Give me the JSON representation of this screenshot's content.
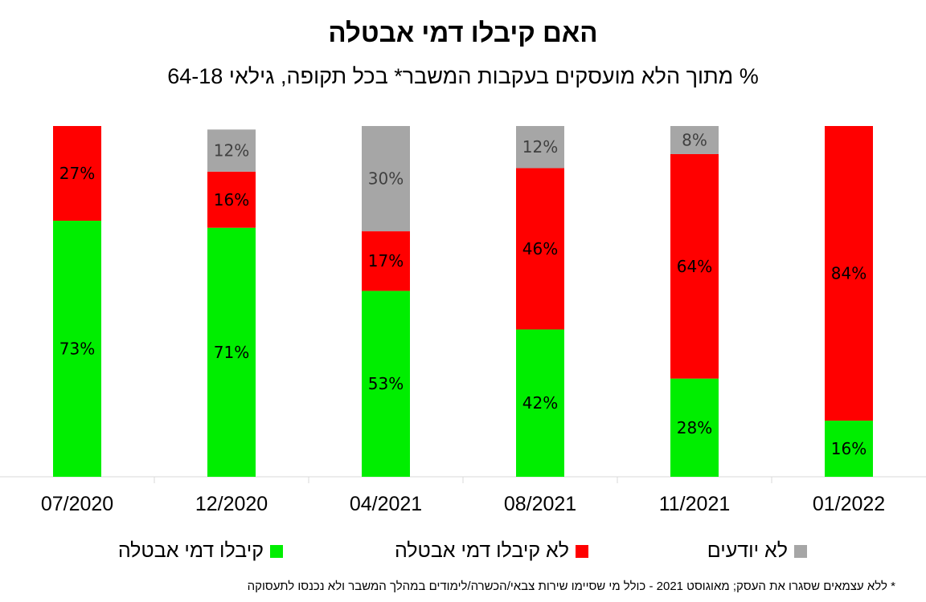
{
  "chart_data": {
    "type": "bar",
    "stacked": true,
    "title": "האם קיבלו דמי אבטלה",
    "subtitle": "% מתוך הלא מועסקים בעקבות המשבר* בכל תקופה, גילאי 64-18",
    "categories": [
      "07/2020",
      "12/2020",
      "04/2021",
      "08/2021",
      "11/2021",
      "01/2022"
    ],
    "series": [
      {
        "name": "קיבלו דמי אבטלה",
        "color": "#00ee00",
        "values": [
          73,
          71,
          53,
          42,
          28,
          16
        ]
      },
      {
        "name": "לא קיבלו דמי אבטלה",
        "color": "#ff0000",
        "values": [
          27,
          16,
          17,
          46,
          64,
          84
        ]
      },
      {
        "name": "לא יודעים",
        "color": "#a6a6a6",
        "values": [
          0,
          12,
          30,
          12,
          8,
          0
        ]
      }
    ],
    "data_labels": [
      [
        "73%",
        "71%",
        "53%",
        "42%",
        "28%",
        "16%"
      ],
      [
        "27%",
        "16%",
        "17%",
        "46%",
        "64%",
        "84%"
      ],
      [
        "",
        "12%",
        "30%",
        "12%",
        "8%",
        ""
      ]
    ],
    "ylim": [
      0,
      100
    ],
    "grid": false,
    "legend_position": "bottom",
    "footnote": "* ללא עצמאים שסגרו את העסק; מאוגוסט 2021 - כולל מי שסיימו שירות צבאי/הכשרה/לימודים במהלך המשבר ולא נכנסו לתעסוקה"
  }
}
